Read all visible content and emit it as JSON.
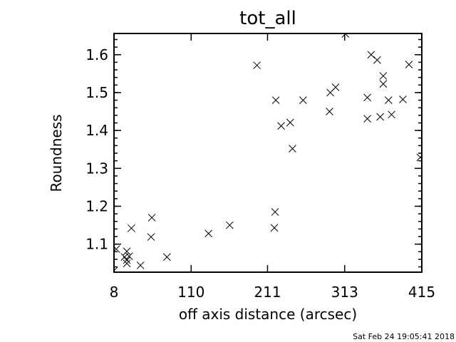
{
  "chart_data": {
    "type": "scatter",
    "title": "tot_all",
    "xlabel": "off axis distance (arcsec)",
    "ylabel": "Roundness",
    "xlim": [
      8,
      415
    ],
    "ylim": [
      1.026,
      1.656
    ],
    "x_ticks": [
      "8",
      "110",
      "211",
      "313",
      "415"
    ],
    "y_ticks": [
      "1.1",
      "1.2",
      "1.3",
      "1.4",
      "1.5",
      "1.6"
    ],
    "marker": "x",
    "grid": false,
    "points": [
      [
        314,
        1.655
      ],
      [
        197,
        1.572
      ],
      [
        222,
        1.48
      ],
      [
        229,
        1.412
      ],
      [
        241,
        1.421
      ],
      [
        244,
        1.352
      ],
      [
        258,
        1.48
      ],
      [
        293,
        1.45
      ],
      [
        294,
        1.5
      ],
      [
        301,
        1.514
      ],
      [
        343,
        1.431
      ],
      [
        343,
        1.487
      ],
      [
        348,
        1.6
      ],
      [
        356,
        1.586
      ],
      [
        360,
        1.436
      ],
      [
        364,
        1.544
      ],
      [
        364,
        1.523
      ],
      [
        371,
        1.48
      ],
      [
        375,
        1.442
      ],
      [
        390,
        1.482
      ],
      [
        398,
        1.574
      ],
      [
        413,
        1.329
      ],
      [
        221,
        1.185
      ],
      [
        220,
        1.143
      ],
      [
        161,
        1.15
      ],
      [
        133,
        1.128
      ],
      [
        78,
        1.066
      ],
      [
        58,
        1.17
      ],
      [
        57,
        1.119
      ],
      [
        43,
        1.044
      ],
      [
        31,
        1.142
      ],
      [
        28,
        1.068
      ],
      [
        25,
        1.081
      ],
      [
        25,
        1.058
      ],
      [
        25,
        1.049
      ],
      [
        22,
        1.066
      ],
      [
        11,
        1.087
      ],
      [
        8,
        1.03
      ]
    ]
  },
  "timestamp": "Sat Feb 24 19:05:41 2018"
}
